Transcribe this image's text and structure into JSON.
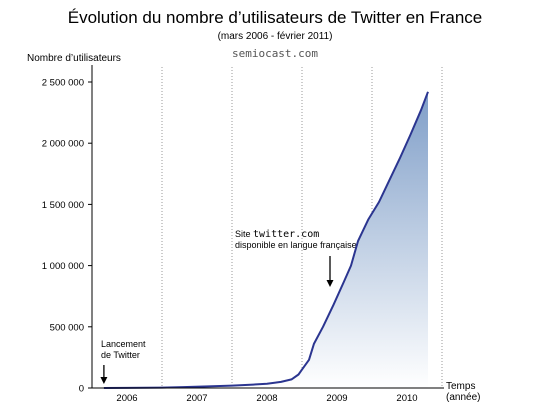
{
  "chart_data": {
    "type": "area",
    "title": "Évolution du nombre d’utilisateurs de Twitter en France",
    "subtitle": "(mars 2006 - février 2011)",
    "credit": "semiocast.com",
    "ylabel": "Nombre d’utilisateurs",
    "xlabel_line1": "Temps",
    "xlabel_line2": "(année)",
    "ylim": [
      0,
      2500000
    ],
    "xlim": [
      2006.0,
      2011.0
    ],
    "y_ticks": [
      0,
      500000,
      1000000,
      1500000,
      2000000,
      2500000
    ],
    "y_tick_labels": [
      "0",
      "500 000",
      "1 000 000",
      "1 500 000",
      "2 000 000",
      "2 500 000"
    ],
    "x_categories": [
      "2006",
      "2007",
      "2008",
      "2009",
      "2010"
    ],
    "x_boundaries": [
      2007,
      2008,
      2009,
      2010,
      2011
    ],
    "grid": "vertical dotted at year boundaries",
    "series": [
      {
        "line_color": "#2b3590",
        "fill_top": "#7f9ec8",
        "fill_bottom": "#ffffff",
        "points": [
          [
            2006.17,
            0
          ],
          [
            2006.5,
            1000
          ],
          [
            2007.0,
            3000
          ],
          [
            2007.3,
            7000
          ],
          [
            2007.6,
            12000
          ],
          [
            2008.0,
            20000
          ],
          [
            2008.3,
            28000
          ],
          [
            2008.5,
            35000
          ],
          [
            2008.7,
            50000
          ],
          [
            2008.85,
            70000
          ],
          [
            2008.95,
            110000
          ],
          [
            2009.0,
            150000
          ],
          [
            2009.1,
            230000
          ],
          [
            2009.17,
            360000
          ],
          [
            2009.3,
            500000
          ],
          [
            2009.45,
            680000
          ],
          [
            2009.6,
            870000
          ],
          [
            2009.7,
            1000000
          ],
          [
            2009.8,
            1200000
          ],
          [
            2009.95,
            1380000
          ],
          [
            2010.1,
            1520000
          ],
          [
            2010.25,
            1700000
          ],
          [
            2010.4,
            1880000
          ],
          [
            2010.55,
            2070000
          ],
          [
            2010.7,
            2270000
          ],
          [
            2010.8,
            2420000
          ]
        ]
      }
    ],
    "annotations": [
      {
        "line1": "Lancement",
        "line2": "de Twitter",
        "arrow_x": 2006.17
      },
      {
        "line1_prefix": "Site ",
        "line1_mono": "twitter.com",
        "line2": "disponible en langue française",
        "arrow_x": 2009.4
      }
    ]
  }
}
